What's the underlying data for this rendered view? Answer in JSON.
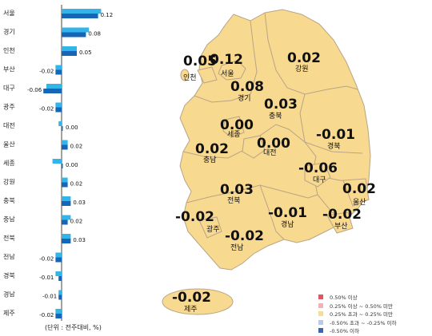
{
  "chart_data": {
    "type": "bar",
    "categories": [
      "서울",
      "경기",
      "인천",
      "부산",
      "대구",
      "광주",
      "대전",
      "울산",
      "세종",
      "강원",
      "충북",
      "충남",
      "전북",
      "전남",
      "경북",
      "경남",
      "제주"
    ],
    "series": [
      {
        "values": [
          0.13,
          0.09,
          0.05,
          -0.02,
          -0.05,
          -0.02,
          -0.01,
          0.02,
          -0.03,
          0.02,
          0.03,
          0.03,
          0.03,
          -0.02,
          -0.02,
          -0.01,
          -0.02
        ]
      },
      {
        "values": [
          0.12,
          0.08,
          0.05,
          -0.02,
          -0.06,
          -0.02,
          0.0,
          0.02,
          0.0,
          0.02,
          0.03,
          0.02,
          0.03,
          -0.02,
          -0.01,
          -0.01,
          -0.02
        ]
      }
    ],
    "value_labels": [
      "0.12",
      "0.08",
      "0.05",
      "-0.02",
      "-0.06",
      "-0.02",
      "0.00",
      "0.02",
      "0.00",
      "0.02",
      "0.03",
      "0.02",
      "0.03",
      "-0.02",
      "-0.01",
      "-0.01",
      "-0.02"
    ],
    "unit_note": "(단위 : 전주대비, %)"
  },
  "regions": {
    "incheon": {
      "name": "인천",
      "value": "0.05"
    },
    "seoul": {
      "name": "서울",
      "value": "0.12"
    },
    "gyeonggi": {
      "name": "경기",
      "value": "0.08"
    },
    "gangwon": {
      "name": "강원",
      "value": "0.02"
    },
    "chungbuk": {
      "name": "충북",
      "value": "0.03"
    },
    "sejong": {
      "name": "세종",
      "value": "0.00"
    },
    "daejeon": {
      "name": "대전",
      "value": "0.00"
    },
    "chungnam": {
      "name": "충남",
      "value": "0.02"
    },
    "gyeongbuk": {
      "name": "경북",
      "value": "-0.01"
    },
    "daegu": {
      "name": "대구",
      "value": "-0.06"
    },
    "jeonbuk": {
      "name": "전북",
      "value": "0.03"
    },
    "ulsan": {
      "name": "울산",
      "value": "0.02"
    },
    "gwangju": {
      "name": "광주",
      "value": "-0.02"
    },
    "gyeongnam": {
      "name": "경남",
      "value": "-0.01"
    },
    "busan": {
      "name": "부산",
      "value": "-0.02"
    },
    "jeonnam": {
      "name": "전남",
      "value": "-0.02"
    },
    "jeju": {
      "name": "제주",
      "value": "-0.02"
    }
  },
  "legend": [
    {
      "label": "0.50% 이상",
      "color": "#e0575f"
    },
    {
      "label": "0.25% 이상 ~ 0.50% 미만",
      "color": "#f3b3b6"
    },
    {
      "label": "0.25% 초과 ~ 0.25% 미만",
      "color": "#f7dc93"
    },
    {
      "label": "-0.50% 초과 ~ -0.25% 이하",
      "color": "#b9cbe9"
    },
    {
      "label": "-0.50% 이하",
      "color": "#3d63b5"
    }
  ],
  "colors": {
    "prev_bar": "#33b5ea",
    "curr_bar": "#1565b8",
    "land": "#f8d990",
    "land_stroke": "#b9a486",
    "border": "#b9a486"
  }
}
